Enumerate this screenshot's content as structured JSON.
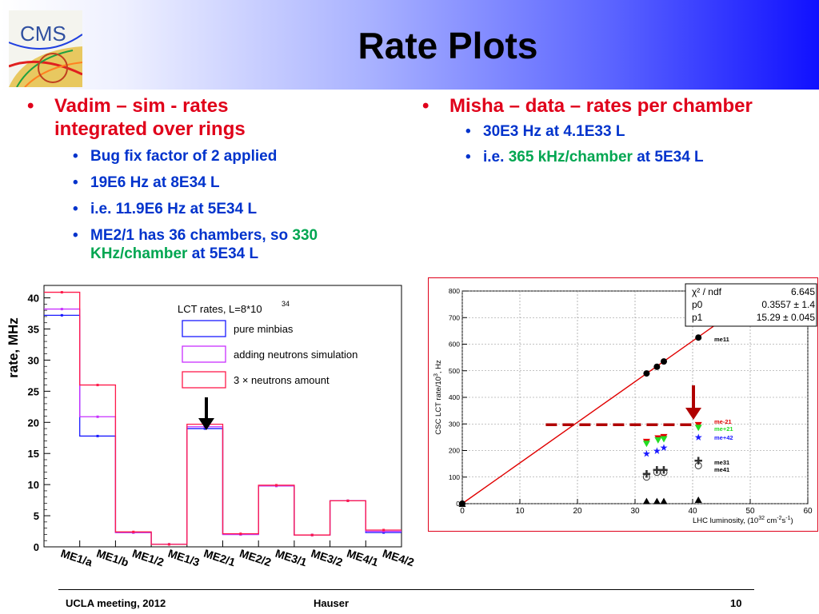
{
  "slide": {
    "title": "Rate Plots",
    "logo_text": "CMS",
    "left": {
      "heading": [
        "Vadim – sim - rates",
        "integrated over rings"
      ],
      "bullets": {
        "b1": "Bug fix factor of 2 applied",
        "b2": "19E6 Hz at 8E34 L",
        "b3": "i.e. 11.9E6 Hz at 5E34 L",
        "b4_pre": "ME2/1 has 36 chambers, so",
        "b4_num": "330",
        "b4_unit": "KHz/chamber",
        "b4_post": "at 5E34 L"
      }
    },
    "right": {
      "heading": "Misha – data – rates per chamber",
      "bullets": {
        "b1": "30E3 Hz at 4.1E33 L",
        "b2_pre": "i.e.",
        "b2_green": "365 kHz/chamber",
        "b2_post": "at 5E34 L"
      }
    },
    "footer": {
      "left": "UCLA meeting, 2012",
      "center": "Hauser",
      "right": "10"
    },
    "colors": {
      "heading_red": "#e0001a",
      "bullet_blue": "#0033cc",
      "highlight_green": "#00a651"
    },
    "bullet_glyph": "•"
  },
  "chart_data": [
    {
      "type": "bar",
      "ylabel": "rate, MHz",
      "ylim": [
        0,
        42
      ],
      "yticks": [
        0,
        5,
        10,
        15,
        20,
        25,
        30,
        35,
        40
      ],
      "categories": [
        "ME1/a",
        "ME1/b",
        "ME1/2",
        "ME1/3",
        "ME2/1",
        "ME2/2",
        "ME3/1",
        "ME3/2",
        "ME4/1",
        "ME4/2"
      ],
      "legend_title": "LCT rates,   L=8*10",
      "legend_title_sup": "34",
      "series": [
        {
          "name": "pure minbias",
          "color": "#1a1aff",
          "values": [
            37.2,
            17.8,
            2.3,
            0.4,
            19.0,
            2.0,
            9.8,
            1.9,
            7.4,
            2.3
          ]
        },
        {
          "name": "adding neutrons simulation",
          "color": "#c830ff",
          "values": [
            38.2,
            20.9,
            2.3,
            0.4,
            19.3,
            2.0,
            9.8,
            1.9,
            7.4,
            2.5
          ]
        },
        {
          "name": "3 × neutrons amount",
          "color": "#ff1a4a",
          "values": [
            40.9,
            26.0,
            2.4,
            0.4,
            19.7,
            2.1,
            9.9,
            1.9,
            7.4,
            2.7
          ]
        }
      ]
    },
    {
      "type": "scatter",
      "xlabel": "LHC luminosity, (10",
      "xlabel_sup": "32",
      "xlabel_post": " cm",
      "xlabel_sup2": "-2",
      "xlabel_post2": "s",
      "xlabel_sup3": "-1",
      "xlabel_end": ")",
      "ylabel": "CSC LCT rate/10",
      "ylabel_sup": "3",
      "ylabel_post": ", Hz",
      "xlim": [
        0,
        60
      ],
      "ylim": [
        0,
        800
      ],
      "xticks": [
        0,
        10,
        20,
        30,
        40,
        50,
        60
      ],
      "yticks": [
        0,
        100,
        200,
        300,
        400,
        500,
        600,
        700,
        800
      ],
      "grid": true,
      "fit": {
        "rows": [
          {
            "label": "χ² / ndf",
            "value": "6.645"
          },
          {
            "label": "p0",
            "value": "0.3557 ± 1.4"
          },
          {
            "label": "p1",
            "value": "15.29 ± 0.045"
          }
        ],
        "slope": 15.29,
        "intercept": 0.3557,
        "x_range": [
          0,
          45
        ]
      },
      "hline": {
        "y": 297,
        "x_range": [
          14.5,
          40
        ]
      },
      "series": [
        {
          "name": "me11",
          "color": "#000000",
          "marker": "circle",
          "x": [
            0,
            32,
            33.8,
            35,
            41
          ],
          "y": [
            0,
            490,
            515,
            535,
            625
          ]
        },
        {
          "name": "me-21",
          "color": "#e00000",
          "marker": "triangle-down",
          "x": [
            32,
            34,
            35,
            41
          ],
          "y": [
            232,
            245,
            250,
            295
          ]
        },
        {
          "name": "me+21",
          "color": "#22dd22",
          "marker": "triangle-down",
          "x": [
            32,
            34,
            35,
            41
          ],
          "y": [
            225,
            238,
            242,
            285
          ]
        },
        {
          "name": "me+42",
          "color": "#1a1aff",
          "marker": "star",
          "x": [
            32,
            33.8,
            35,
            41
          ],
          "y": [
            188,
            198,
            210,
            250
          ]
        },
        {
          "name": "me31",
          "color": "#333333",
          "marker": "cross",
          "x": [
            32,
            33.8,
            35,
            41
          ],
          "y": [
            110,
            125,
            125,
            160
          ]
        },
        {
          "name": "me41",
          "color": "#333333",
          "marker": "circle-open",
          "x": [
            32,
            33.8,
            35,
            41
          ],
          "y": [
            100,
            118,
            118,
            143
          ]
        },
        {
          "name": "",
          "color": "#000000",
          "marker": "triangle-up",
          "x": [
            0,
            32,
            33.8,
            35,
            41
          ],
          "y": [
            0,
            10,
            10,
            10,
            15
          ]
        }
      ]
    }
  ]
}
